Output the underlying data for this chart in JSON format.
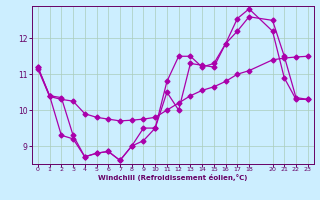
{
  "xlabel": "Windchill (Refroidissement éolien,°C)",
  "bg_color": "#cceeff",
  "line_color": "#aa00aa",
  "grid_color": "#aaccbb",
  "axis_color": "#660066",
  "label_color": "#660066",
  "xlim": [
    -0.5,
    23.5
  ],
  "ylim": [
    8.5,
    12.9
  ],
  "xticks": [
    0,
    1,
    2,
    3,
    4,
    5,
    6,
    7,
    8,
    9,
    10,
    11,
    12,
    13,
    14,
    15,
    16,
    17,
    18,
    20,
    21,
    22,
    23
  ],
  "yticks": [
    9,
    10,
    11,
    12
  ],
  "series1_x": [
    0,
    1,
    2,
    3,
    4,
    5,
    6,
    7,
    8,
    9,
    10,
    11,
    12,
    13,
    14,
    15,
    16,
    17,
    18,
    20,
    21,
    22,
    23
  ],
  "series1_y": [
    11.2,
    10.4,
    10.35,
    9.3,
    8.7,
    8.8,
    8.85,
    8.6,
    9.0,
    9.5,
    9.5,
    10.8,
    11.5,
    11.5,
    11.2,
    11.3,
    11.85,
    12.55,
    12.82,
    12.2,
    10.9,
    10.3,
    10.3
  ],
  "series2_x": [
    0,
    1,
    2,
    3,
    4,
    5,
    6,
    7,
    8,
    9,
    10,
    11,
    12,
    13,
    14,
    15,
    16,
    17,
    18,
    20,
    21,
    22,
    23
  ],
  "series2_y": [
    11.15,
    10.38,
    10.3,
    10.25,
    9.9,
    9.8,
    9.75,
    9.7,
    9.72,
    9.75,
    9.8,
    10.0,
    10.2,
    10.4,
    10.55,
    10.65,
    10.8,
    11.0,
    11.1,
    11.4,
    11.45,
    11.48,
    11.5
  ],
  "series3_x": [
    0,
    1,
    2,
    3,
    4,
    5,
    6,
    7,
    8,
    9,
    10,
    11,
    12,
    13,
    14,
    15,
    16,
    17,
    18,
    20,
    21,
    22,
    23
  ],
  "series3_y": [
    11.2,
    10.4,
    9.3,
    9.2,
    8.7,
    8.8,
    8.85,
    8.6,
    9.0,
    9.15,
    9.5,
    10.5,
    10.0,
    11.3,
    11.25,
    11.2,
    11.85,
    12.2,
    12.6,
    12.5,
    11.5,
    10.35,
    10.3
  ],
  "marker": "D",
  "markersize": 2.5,
  "linewidth": 0.9
}
